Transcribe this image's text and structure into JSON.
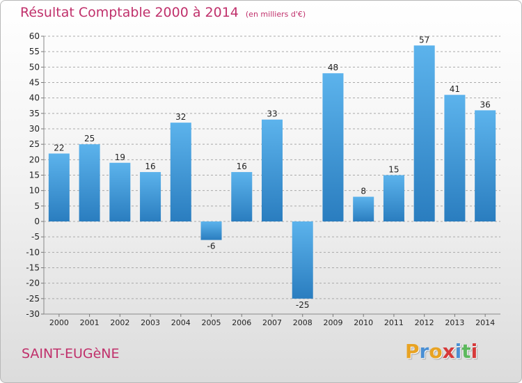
{
  "header": {
    "title": "Résultat Comptable 2000 à 2014",
    "subtitle": "(en milliers d'€)"
  },
  "footer": {
    "town": "SAINT-EUGèNE",
    "logo": [
      "P",
      "r",
      "o",
      "x",
      "i",
      "t",
      "i"
    ],
    "logo_colors": [
      "#e8a323",
      "#4a8fd4",
      "#e8a323",
      "#d63a3a",
      "#4a8fd4",
      "#5cb85c",
      "#d63a3a"
    ]
  },
  "colors": {
    "title": "#c0306b",
    "bar_top": "#5cb3ec",
    "bar_bottom": "#2a7dbf",
    "grid": "#a9a9a9"
  },
  "chart_data": {
    "type": "bar",
    "title": "Résultat Comptable 2000 à 2014",
    "categories": [
      "2000",
      "2001",
      "2002",
      "2003",
      "2004",
      "2005",
      "2006",
      "2007",
      "2008",
      "2009",
      "2010",
      "2011",
      "2012",
      "2013",
      "2014"
    ],
    "values": [
      22,
      25,
      19,
      16,
      32,
      -6,
      16,
      33,
      -25,
      48,
      8,
      15,
      57,
      41,
      36
    ],
    "ylim": [
      -30,
      60
    ],
    "yticks": [
      60,
      55,
      50,
      45,
      40,
      35,
      30,
      25,
      20,
      15,
      10,
      5,
      0,
      -5,
      -10,
      -15,
      -20,
      -25,
      -30
    ],
    "grid": true,
    "xlabel": "",
    "ylabel": ""
  }
}
